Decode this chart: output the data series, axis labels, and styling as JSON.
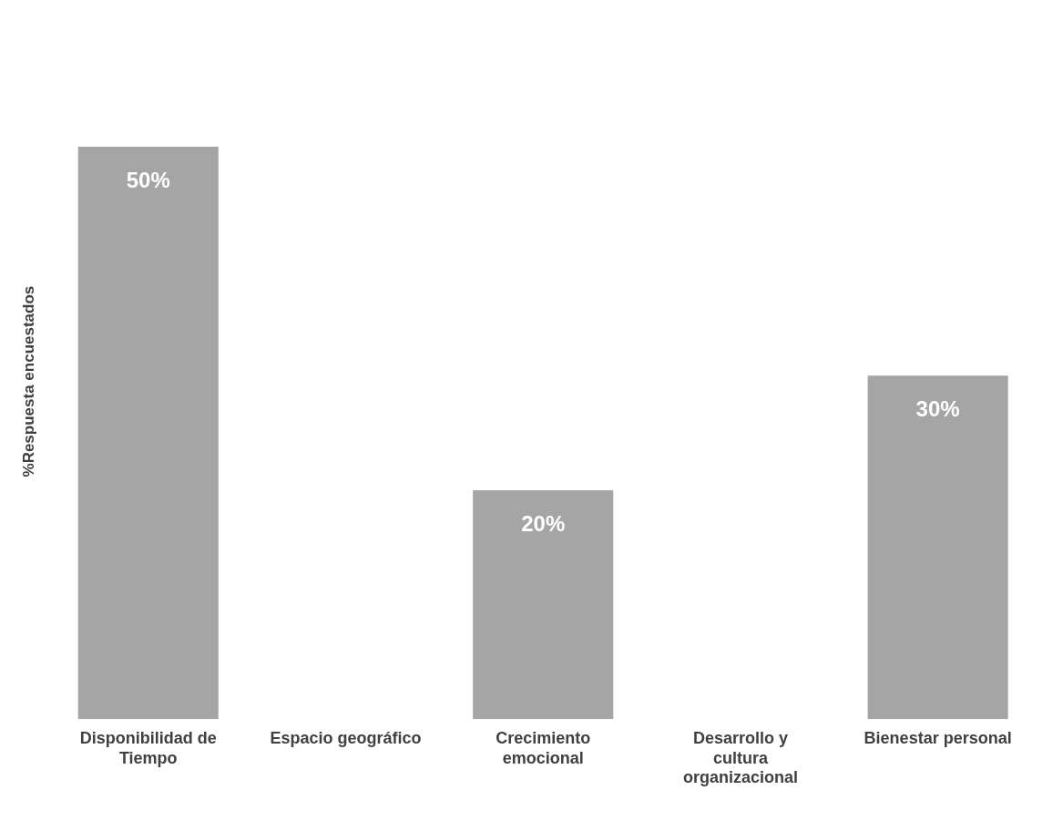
{
  "chart_data": {
    "type": "bar",
    "ylabel": "%Respuesta encuestados",
    "categories": [
      "Disponibilidad de Tiempo",
      "Espacio geográfico",
      "Crecimiento emocional",
      "Desarrollo y cultura organizacional",
      "Bienestar personal"
    ],
    "values": [
      50,
      0,
      20,
      0,
      30
    ],
    "value_labels": [
      "50%",
      null,
      "20%",
      null,
      "30%"
    ],
    "color": "#a5a5a5",
    "grid": false,
    "legend": false
  }
}
